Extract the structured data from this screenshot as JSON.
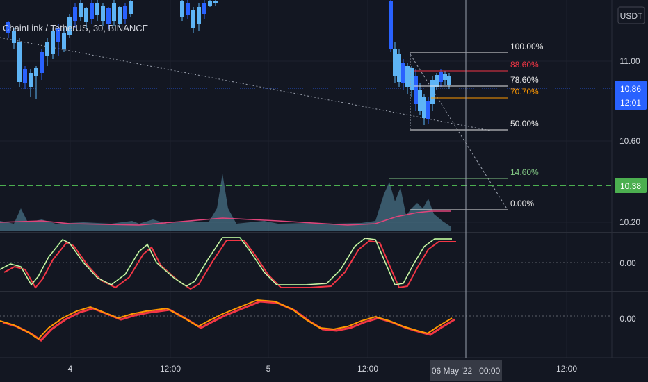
{
  "title": "ChainLink / TetherUS, 30, BINANCE",
  "currency_button": "USDT",
  "colors": {
    "background": "#131722",
    "up": "#2962ff",
    "up_light": "#5eb4f5",
    "grid": "#1e222d",
    "axis_text": "#d1d4dc",
    "price_badge": "#2962ff",
    "green_level": "#4caf50",
    "fib_white": "#e6e6e6",
    "fib_red": "#f23645",
    "fib_orange": "#ff9800",
    "fib_green": "#81c784",
    "volume_fill": "#5a8fa8",
    "volume_ma": "#e0457b",
    "stoch_k": "#4caf50",
    "stoch_d": "#f23645",
    "stoch_light": "#f5f0c0",
    "osc_orange": "#ff9800",
    "osc_red": "#f23645"
  },
  "price_axis": {
    "ticks": [
      "11.00",
      "10.60",
      "10.20"
    ],
    "current_price": "10.86",
    "countdown": "12:01",
    "green_level": "10.38"
  },
  "fib_levels": [
    {
      "label": "100.00%",
      "color": "#e6e6e6"
    },
    {
      "label": "88.60%",
      "color": "#f23645"
    },
    {
      "label": "78.60%",
      "color": "#e6e6e6"
    },
    {
      "label": "70.70%",
      "color": "#ff9800"
    },
    {
      "label": "50.00%",
      "color": "#e6e6e6"
    },
    {
      "label": "14.60%",
      "color": "#81c784"
    },
    {
      "label": "0.00%",
      "color": "#e6e6e6"
    }
  ],
  "osc1_tick": "0.00",
  "osc2_tick": "0.00",
  "time_axis": {
    "ticks": [
      "4",
      "12:00",
      "5",
      "12:00",
      "12:00"
    ],
    "cursor_label": "06 May '22   00:00"
  },
  "chart_data": {
    "type": "candlestick",
    "symbol": "ChainLink / TetherUS",
    "interval": "30",
    "exchange": "BINANCE",
    "y_ticks": [
      11.0,
      10.6,
      10.2
    ],
    "current_price": 10.86,
    "marked_level": 10.38,
    "x_tick_labels": [
      "4",
      "12:00",
      "5",
      "12:00",
      "06 May '22 00:00",
      "12:00"
    ],
    "fibonacci_levels": [
      "100.00%",
      "88.60%",
      "78.60%",
      "70.70%",
      "50.00%",
      "14.60%",
      "0.00%"
    ],
    "indicator_panels": [
      {
        "name": "stochastic",
        "tick": "0.00"
      },
      {
        "name": "oscillator",
        "tick": "0.00"
      }
    ]
  }
}
